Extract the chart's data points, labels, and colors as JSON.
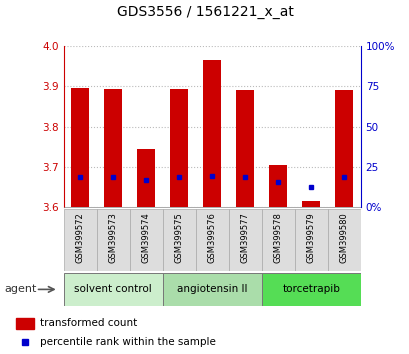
{
  "title": "GDS3556 / 1561221_x_at",
  "samples": [
    "GSM399572",
    "GSM399573",
    "GSM399574",
    "GSM399575",
    "GSM399576",
    "GSM399577",
    "GSM399578",
    "GSM399579",
    "GSM399580"
  ],
  "bar_bottoms": [
    3.6,
    3.6,
    3.6,
    3.6,
    3.6,
    3.6,
    3.6,
    3.6,
    3.6
  ],
  "bar_tops": [
    3.895,
    3.893,
    3.745,
    3.893,
    3.965,
    3.892,
    3.705,
    3.615,
    3.892
  ],
  "blue_dots_y": [
    3.675,
    3.675,
    3.667,
    3.675,
    3.677,
    3.675,
    3.663,
    3.651,
    3.675
  ],
  "bar_color": "#cc0000",
  "dot_color": "#0000cc",
  "ylim": [
    3.6,
    4.0
  ],
  "yticks_left": [
    3.6,
    3.7,
    3.8,
    3.9,
    4.0
  ],
  "yticks_right": [
    0,
    25,
    50,
    75,
    100
  ],
  "groups": [
    {
      "label": "solvent control",
      "samples": [
        0,
        1,
        2
      ],
      "color": "#cceecc"
    },
    {
      "label": "angiotensin II",
      "samples": [
        3,
        4,
        5
      ],
      "color": "#aaddaa"
    },
    {
      "label": "torcetrapib",
      "samples": [
        6,
        7,
        8
      ],
      "color": "#55dd55"
    }
  ],
  "agent_label": "agent",
  "left_tick_color": "#cc0000",
  "right_tick_color": "#0000cc",
  "grid_linestyle": "dotted",
  "grid_color": "#bbbbbb",
  "bar_width": 0.55,
  "box_color": "#dddddd",
  "box_edge_color": "#aaaaaa"
}
